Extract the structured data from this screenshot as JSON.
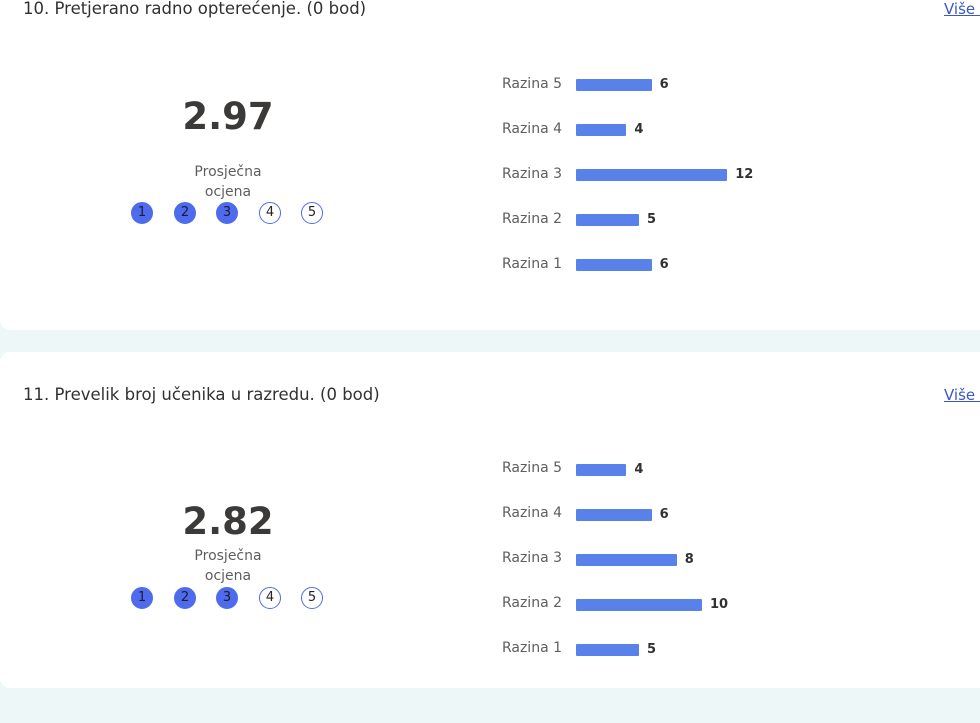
{
  "accent_color": "#4f6bed",
  "bar_color": "#5882ea",
  "questions": [
    {
      "title": "10. Pretjerano radno opterećenje. (0 bod)",
      "more_link": "Više p",
      "average": "2.97",
      "average_label": "Prosječna ocjena",
      "rating_dots": [
        {
          "label": "1",
          "filled": true
        },
        {
          "label": "2",
          "filled": true
        },
        {
          "label": "3",
          "filled": true
        },
        {
          "label": "4",
          "filled": false
        },
        {
          "label": "5",
          "filled": false
        }
      ],
      "chart_data": {
        "type": "bar",
        "orientation": "horizontal",
        "categories": [
          "Razina 5",
          "Razina 4",
          "Razina 3",
          "Razina 2",
          "Razina 1"
        ],
        "values": [
          6,
          4,
          12,
          5,
          6
        ]
      }
    },
    {
      "title": "11. Prevelik broj učenika u razredu. (0 bod)",
      "more_link": "Više p",
      "average": "2.82",
      "average_label": "Prosječna ocjena",
      "rating_dots": [
        {
          "label": "1",
          "filled": true
        },
        {
          "label": "2",
          "filled": true
        },
        {
          "label": "3",
          "filled": true
        },
        {
          "label": "4",
          "filled": false
        },
        {
          "label": "5",
          "filled": false
        }
      ],
      "chart_data": {
        "type": "bar",
        "orientation": "horizontal",
        "categories": [
          "Razina 5",
          "Razina 4",
          "Razina 3",
          "Razina 2",
          "Razina 1"
        ],
        "values": [
          4,
          6,
          8,
          10,
          5
        ]
      }
    }
  ]
}
